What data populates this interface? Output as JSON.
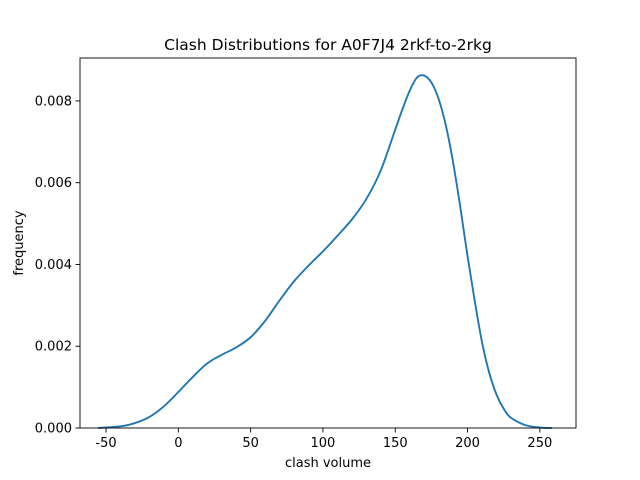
{
  "chart_data": {
    "type": "line",
    "title": "Clash Distributions for A0F7J4 2rkf-to-2rkg",
    "xlabel": "clash volume",
    "ylabel": "frequency",
    "xlim": [
      -68,
      275
    ],
    "ylim": [
      0.0,
      0.00905
    ],
    "xticks": [
      -50,
      0,
      50,
      100,
      150,
      200,
      250
    ],
    "xtick_labels": [
      "-50",
      "0",
      "50",
      "100",
      "150",
      "200",
      "250"
    ],
    "yticks": [
      0.0,
      0.002,
      0.004,
      0.006,
      0.008
    ],
    "ytick_labels": [
      "0.000",
      "0.002",
      "0.004",
      "0.006",
      "0.008"
    ],
    "grid": false,
    "series": [
      {
        "color": "#1f77b4",
        "x": [
          -55,
          -40,
          -30,
          -20,
          -10,
          0,
          10,
          20,
          30,
          40,
          50,
          60,
          70,
          80,
          90,
          100,
          110,
          120,
          130,
          140,
          150,
          155,
          160,
          165,
          170,
          175,
          180,
          185,
          190,
          195,
          200,
          205,
          210,
          215,
          220,
          225,
          230,
          240,
          250,
          258
        ],
        "y": [
          0.0,
          4e-05,
          0.00012,
          0.00027,
          0.00053,
          0.00088,
          0.00125,
          0.00158,
          0.00179,
          0.00197,
          0.00222,
          0.00262,
          0.00312,
          0.00359,
          0.00397,
          0.00432,
          0.0047,
          0.0051,
          0.0056,
          0.0063,
          0.0073,
          0.0078,
          0.00825,
          0.00857,
          0.00862,
          0.00845,
          0.00805,
          0.0074,
          0.0065,
          0.0054,
          0.0042,
          0.0031,
          0.0021,
          0.00135,
          0.00082,
          0.00047,
          0.00025,
          7e-05,
          1e-05,
          0.0
        ]
      }
    ]
  }
}
